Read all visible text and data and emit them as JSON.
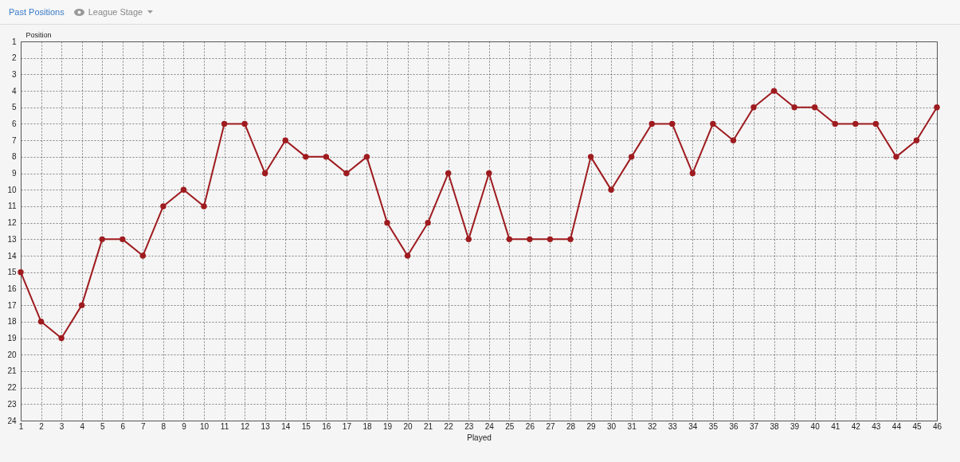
{
  "chart_data": {
    "type": "line",
    "title": "Past Positions",
    "subtitle": "League Stage",
    "xlabel": "Played",
    "ylabel": "Position",
    "x": [
      1,
      2,
      3,
      4,
      5,
      6,
      7,
      8,
      9,
      10,
      11,
      12,
      13,
      14,
      15,
      16,
      17,
      18,
      19,
      20,
      21,
      22,
      23,
      24,
      25,
      26,
      27,
      28,
      29,
      30,
      31,
      32,
      33,
      34,
      35,
      36,
      37,
      38,
      39,
      40,
      41,
      42,
      43,
      44,
      45,
      46
    ],
    "series": [
      {
        "color": "#9e1b1f",
        "values": [
          15,
          18,
          19,
          17,
          13,
          13,
          14,
          11,
          10,
          11,
          6,
          6,
          9,
          7,
          8,
          8,
          9,
          8,
          12,
          14,
          12,
          9,
          13,
          9,
          13,
          13,
          13,
          13,
          8,
          10,
          8,
          6,
          6,
          9,
          6,
          7,
          5,
          4,
          5,
          5,
          6,
          6,
          6,
          8,
          7,
          5
        ]
      }
    ],
    "xlim": [
      1,
      46
    ],
    "xticks": [
      1,
      2,
      3,
      4,
      5,
      6,
      7,
      8,
      9,
      10,
      11,
      12,
      13,
      14,
      15,
      16,
      17,
      18,
      19,
      20,
      21,
      22,
      23,
      24,
      25,
      26,
      27,
      28,
      29,
      30,
      31,
      32,
      33,
      34,
      35,
      36,
      37,
      38,
      39,
      40,
      41,
      42,
      43,
      44,
      45,
      46
    ],
    "ylim": [
      24,
      1
    ],
    "yticks": [
      1,
      2,
      3,
      4,
      5,
      6,
      7,
      8,
      9,
      10,
      11,
      12,
      13,
      14,
      15,
      16,
      17,
      18,
      19,
      20,
      21,
      22,
      23,
      24
    ],
    "grid": true,
    "marker": "circle",
    "line_style": "solid"
  }
}
